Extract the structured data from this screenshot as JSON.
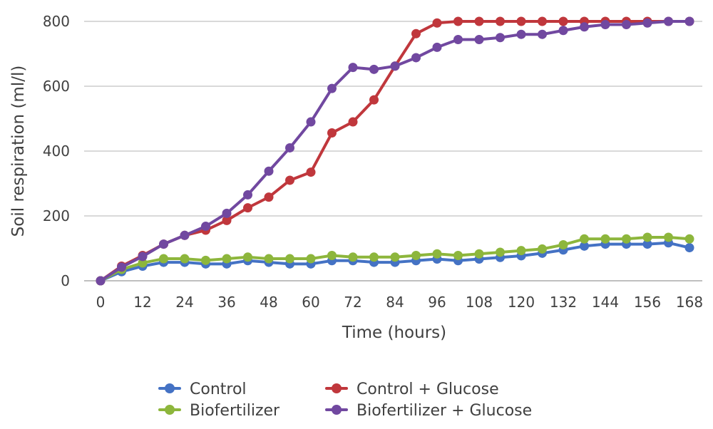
{
  "chart_data": {
    "type": "line",
    "title": "",
    "xlabel": "Time (hours)",
    "ylabel": "Soil respiration (ml/l)",
    "xlim": [
      0,
      168
    ],
    "ylim": [
      0,
      800
    ],
    "x_ticks": [
      0,
      12,
      24,
      36,
      48,
      60,
      72,
      84,
      96,
      108,
      120,
      132,
      144,
      156,
      168
    ],
    "y_ticks": [
      0,
      200,
      400,
      600,
      800
    ],
    "grid": "horizontal",
    "legend_position": "bottom",
    "x": [
      0,
      6,
      12,
      18,
      24,
      30,
      36,
      42,
      48,
      54,
      60,
      66,
      72,
      78,
      84,
      90,
      96,
      102,
      108,
      114,
      120,
      126,
      132,
      138,
      144,
      150,
      156,
      162,
      168
    ],
    "series": [
      {
        "name": "Control",
        "color": "#4472C4",
        "values": [
          0,
          28,
          45,
          57,
          57,
          52,
          52,
          62,
          57,
          52,
          52,
          62,
          62,
          57,
          57,
          62,
          67,
          62,
          67,
          72,
          77,
          85,
          95,
          107,
          113,
          113,
          113,
          117,
          102
        ]
      },
      {
        "name": "Biofertilizer",
        "color": "#8DB63C",
        "values": [
          0,
          35,
          55,
          68,
          68,
          63,
          68,
          73,
          68,
          68,
          68,
          78,
          73,
          73,
          73,
          78,
          83,
          78,
          83,
          88,
          93,
          98,
          111,
          129,
          129,
          129,
          134,
          134,
          129
        ]
      },
      {
        "name": "Control + Glucose",
        "color": "#C0373C",
        "values": [
          0,
          45,
          78,
          113,
          140,
          156,
          186,
          225,
          258,
          310,
          335,
          456,
          490,
          558,
          662,
          762,
          795,
          800,
          800,
          800,
          800,
          800,
          800,
          800,
          800,
          800,
          800,
          800,
          800
        ]
      },
      {
        "name": "Biofertilizer + Glucose",
        "color": "#7148A0",
        "values": [
          0,
          42,
          75,
          113,
          140,
          168,
          208,
          265,
          338,
          410,
          490,
          593,
          658,
          652,
          662,
          688,
          720,
          744,
          744,
          750,
          760,
          760,
          772,
          783,
          790,
          790,
          795,
          800,
          800
        ]
      }
    ]
  }
}
